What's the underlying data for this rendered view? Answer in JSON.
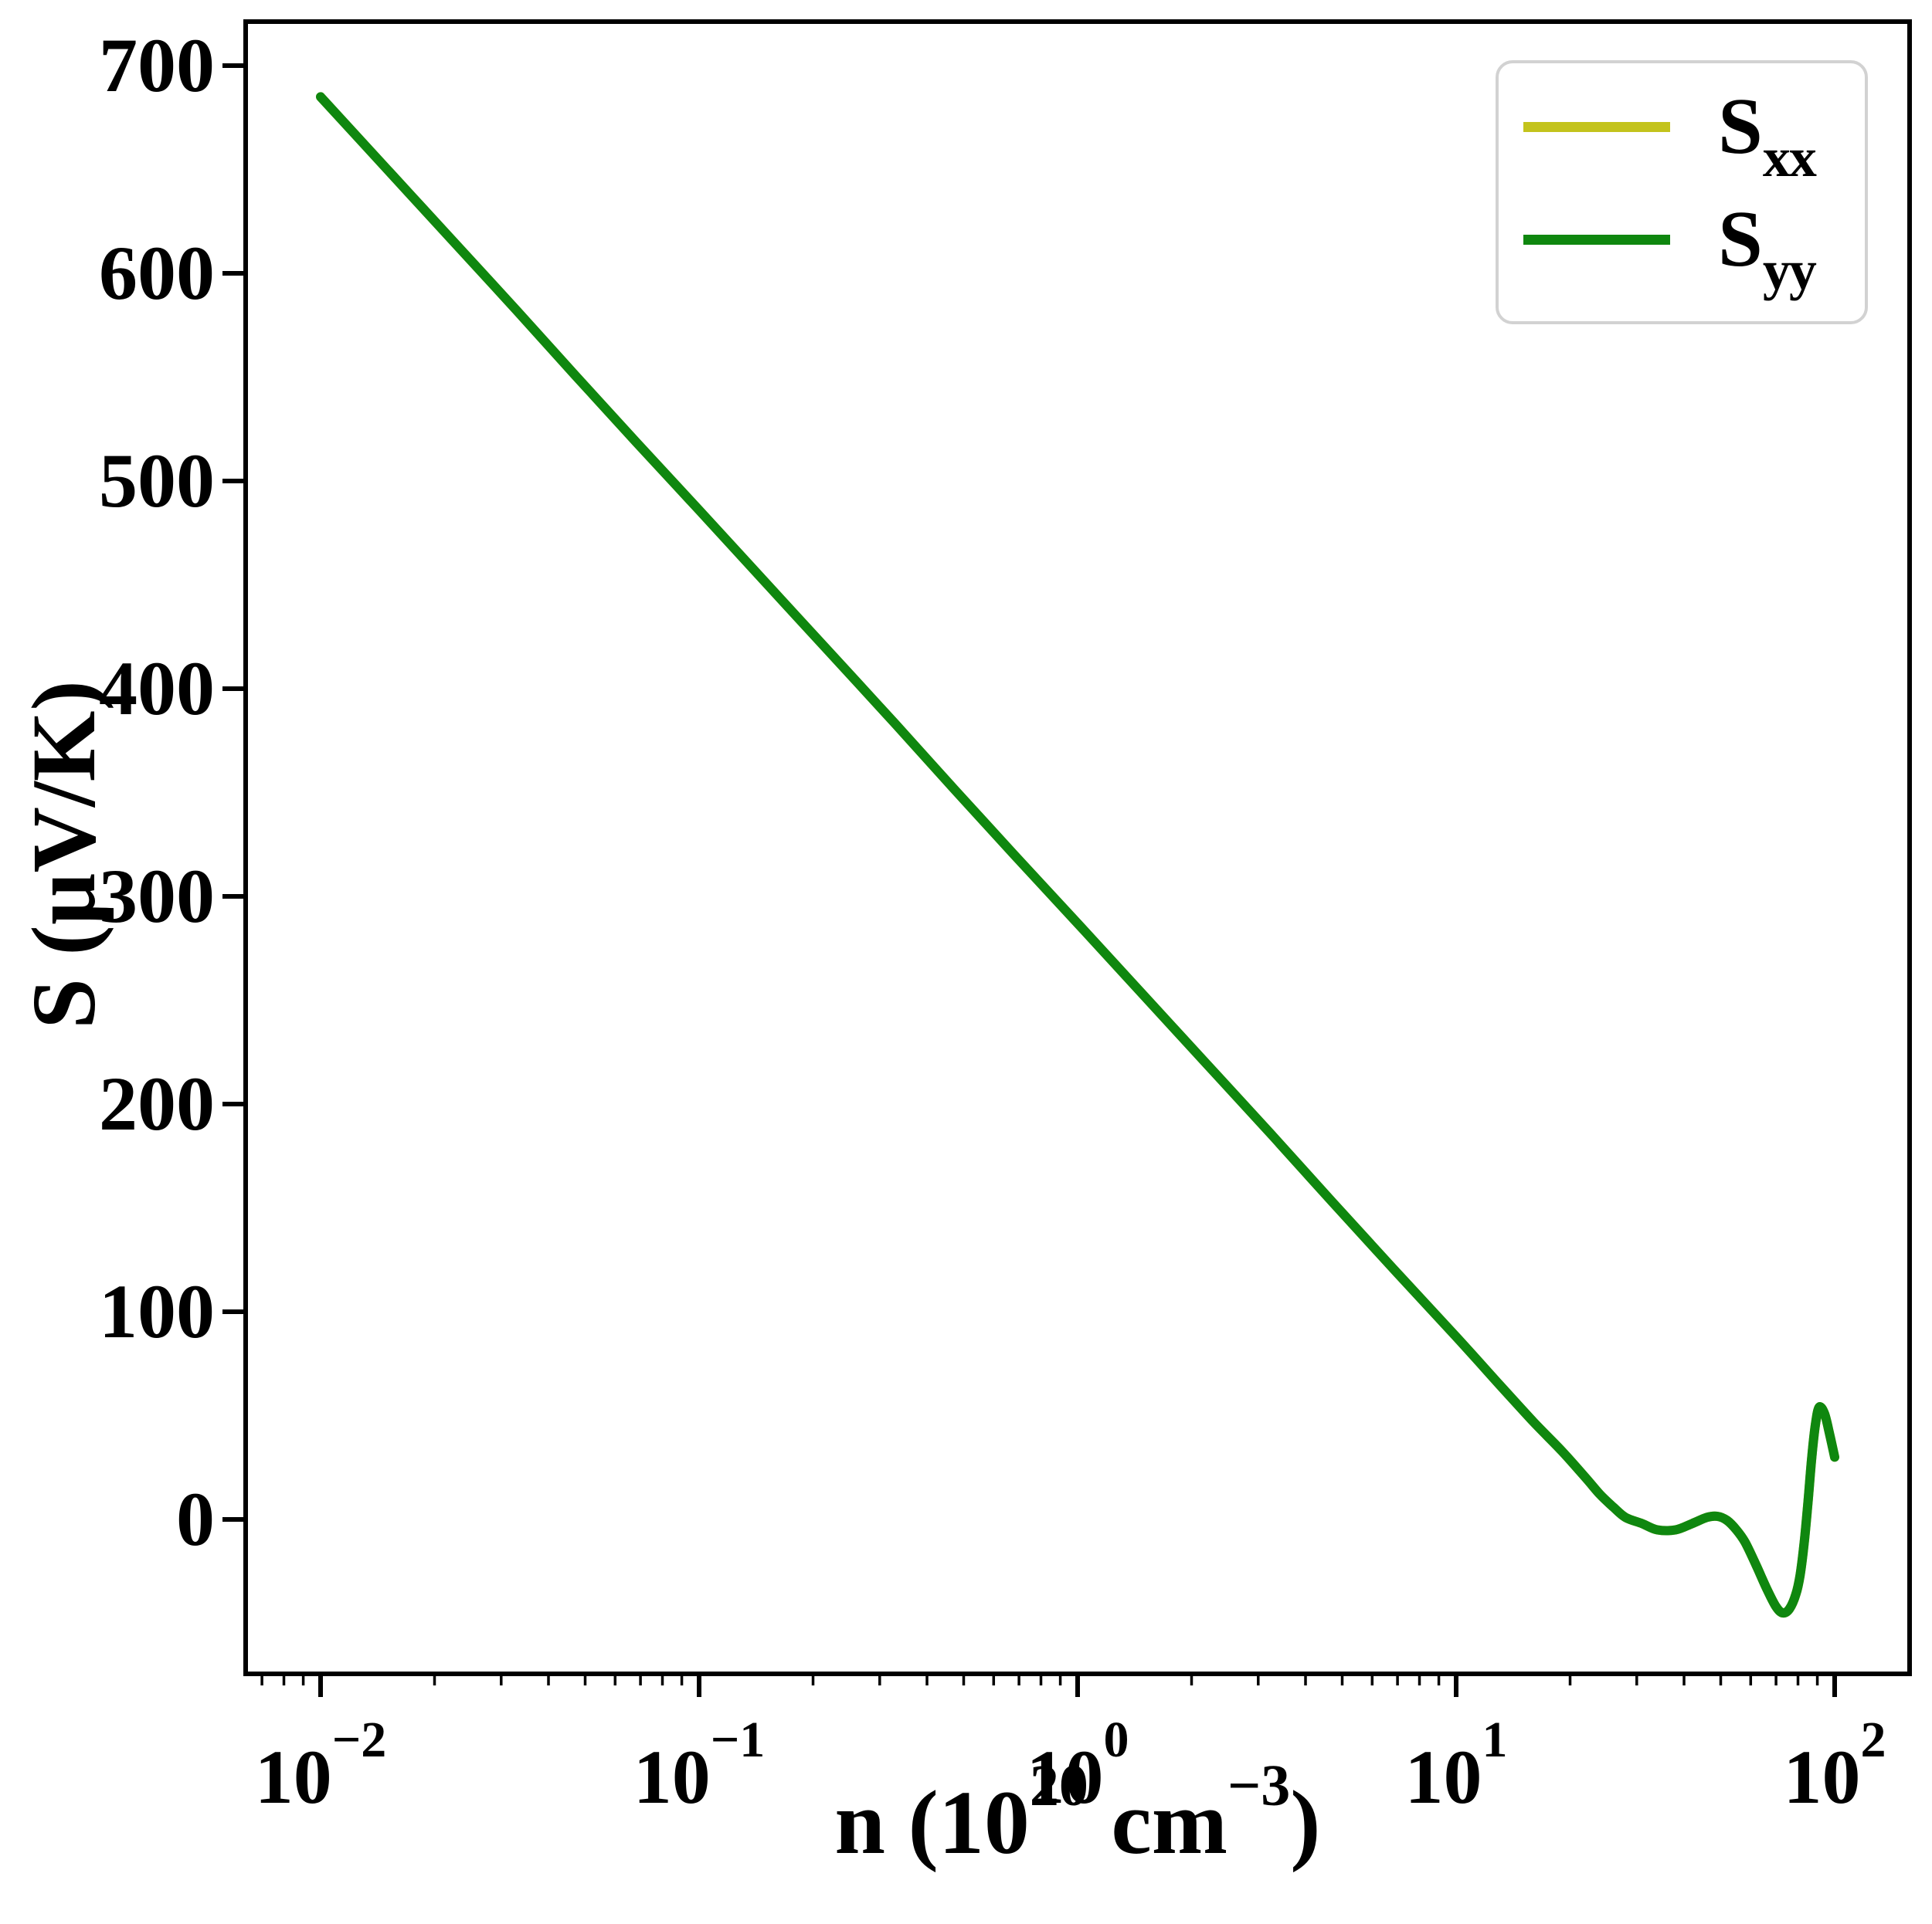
{
  "chart_data": {
    "type": "line",
    "title": "",
    "x_scale": "log",
    "xlabel_parts": {
      "prefix": "n (10",
      "sup1": "20",
      "mid": " cm",
      "sup2": "−3",
      "suffix": ")"
    },
    "ylabel": "S (µV/K)",
    "xlim": [
      0.0063,
      158
    ],
    "ylim": [
      -74,
      721
    ],
    "grid": false,
    "legend_position": "upper right",
    "x": [
      0.01,
      0.015,
      0.022,
      0.033,
      0.047,
      0.068,
      0.1,
      0.15,
      0.22,
      0.33,
      0.47,
      0.68,
      1,
      1.5,
      2.2,
      3.3,
      4.7,
      6.8,
      10,
      13,
      16,
      19,
      22,
      24,
      26,
      28,
      31,
      34,
      38,
      42,
      46,
      49,
      52,
      55,
      58,
      62,
      66,
      70,
      73,
      76,
      79,
      81,
      83,
      85,
      87,
      89,
      91,
      94,
      97,
      100
    ],
    "series": [
      {
        "name": "Sxx",
        "color": "#c3c31c",
        "values": [
          685,
          650,
          617,
          582,
          551,
          519,
          486,
          451,
          418,
          383,
          352,
          320,
          287,
          252,
          219,
          184,
          153,
          121,
          88,
          65,
          47,
          33,
          20,
          12,
          6,
          1,
          -2,
          -5,
          -5,
          -2,
          1,
          1.5,
          -0.5,
          -5,
          -11,
          -22,
          -33,
          -42,
          -45,
          -43,
          -36,
          -27,
          -12,
          8,
          30,
          46,
          54,
          51,
          41,
          30
        ]
      },
      {
        "name": "Syy",
        "color": "#0f870f",
        "values": [
          685,
          650,
          617,
          582,
          551,
          519,
          486,
          451,
          418,
          383,
          352,
          320,
          287,
          252,
          219,
          184,
          153,
          121,
          88,
          65,
          47,
          33,
          20,
          12,
          6,
          1,
          -2,
          -5,
          -5,
          -2,
          1,
          1.5,
          -0.5,
          -5,
          -11,
          -22,
          -33,
          -42,
          -45,
          -43,
          -36,
          -27,
          -12,
          8,
          30,
          46,
          54,
          51,
          41,
          30
        ]
      }
    ],
    "x_ticks": [
      {
        "v": 0.01,
        "base": "10",
        "exp": "−2"
      },
      {
        "v": 0.1,
        "base": "10",
        "exp": "−1"
      },
      {
        "v": 1,
        "base": "10",
        "exp": "0"
      },
      {
        "v": 10,
        "base": "10",
        "exp": "1"
      },
      {
        "v": 100,
        "base": "10",
        "exp": "2"
      }
    ],
    "y_ticks": [
      {
        "v": 0,
        "label": "0"
      },
      {
        "v": 100,
        "label": "100"
      },
      {
        "v": 200,
        "label": "200"
      },
      {
        "v": 300,
        "label": "300"
      },
      {
        "v": 400,
        "label": "400"
      },
      {
        "v": 500,
        "label": "500"
      },
      {
        "v": 600,
        "label": "600"
      },
      {
        "v": 700,
        "label": "700"
      }
    ],
    "legend": [
      {
        "main": "S",
        "sub": "xx"
      },
      {
        "main": "S",
        "sub": "yy"
      }
    ]
  }
}
